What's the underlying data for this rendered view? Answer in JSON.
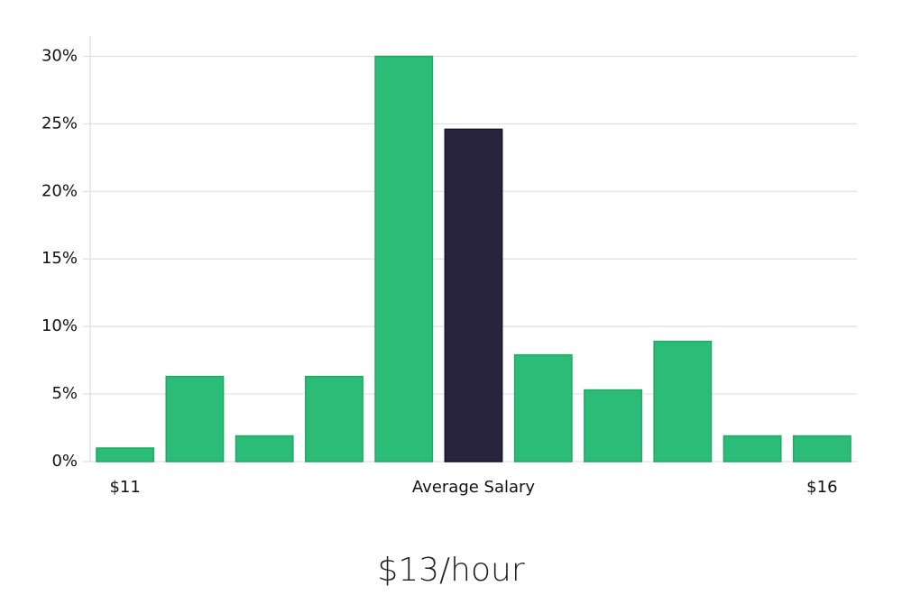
{
  "chart_data": {
    "type": "bar",
    "subtitle": "$13/hour",
    "categories": [
      "$11",
      null,
      null,
      null,
      null,
      "Average Salary",
      null,
      null,
      null,
      null,
      "$16"
    ],
    "values": [
      1.0,
      6.3,
      1.9,
      6.3,
      30,
      24.6,
      7.9,
      5.3,
      8.9,
      1.9,
      1.9
    ],
    "colors": [
      "#2bbd77",
      "#2bbd77",
      "#2bbd77",
      "#2bbd77",
      "#2bbd77",
      "#28233f",
      "#2bbd77",
      "#2bbd77",
      "#2bbd77",
      "#2bbd77",
      "#2bbd77"
    ],
    "ylim": [
      0,
      31.5
    ],
    "yticks": [
      {
        "value": 0,
        "label": "0%"
      },
      {
        "value": 5,
        "label": "5%"
      },
      {
        "value": 10,
        "label": "10%"
      },
      {
        "value": 15,
        "label": "15%"
      },
      {
        "value": 20,
        "label": "20%"
      },
      {
        "value": 25,
        "label": "25%"
      },
      {
        "value": 30,
        "label": "30%"
      }
    ],
    "grid": true
  }
}
